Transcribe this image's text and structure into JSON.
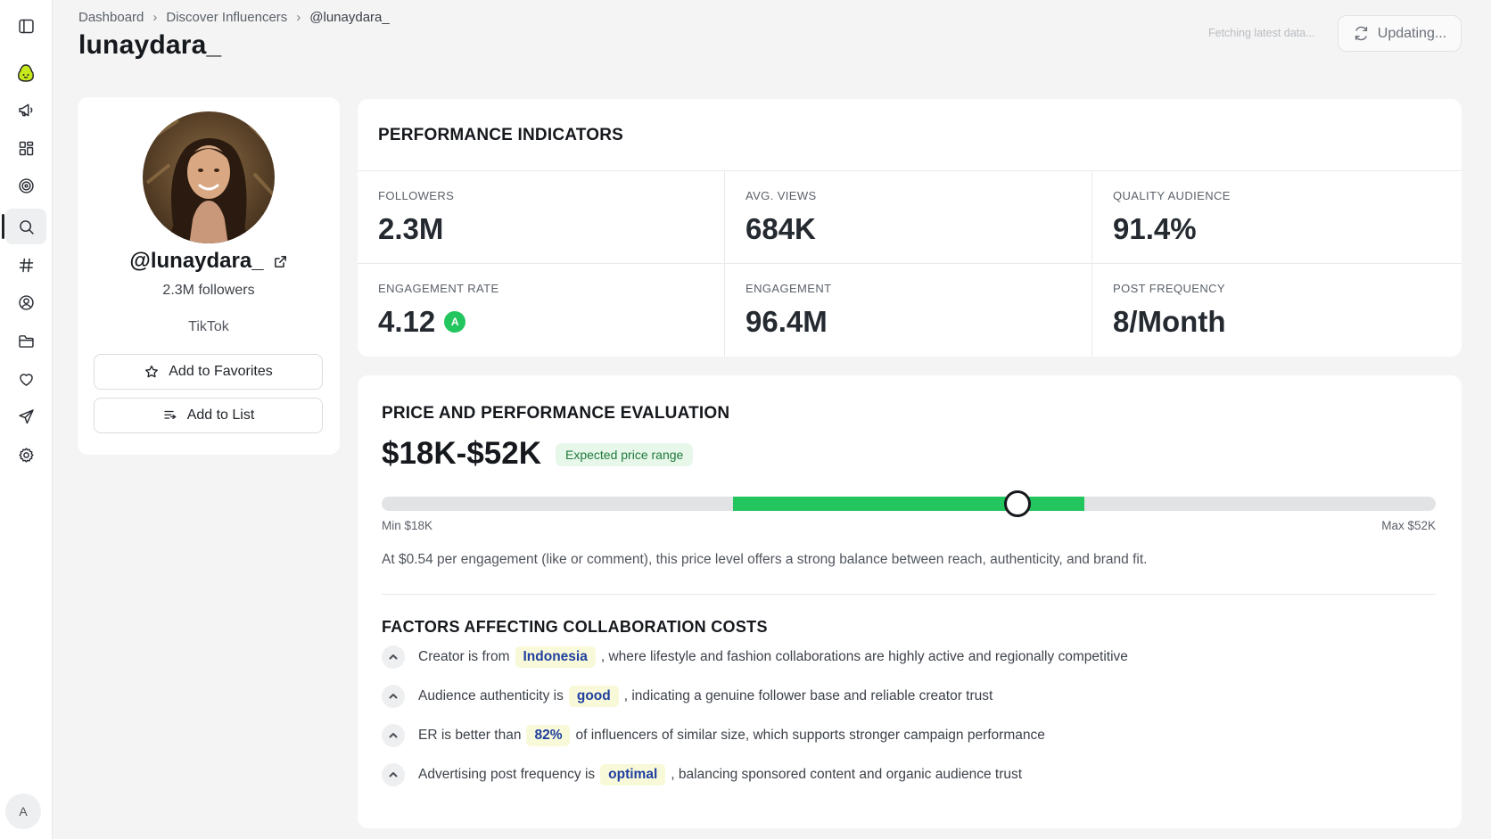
{
  "sidebar": {
    "items": [
      {
        "name": "toggle-sidebar-icon"
      },
      {
        "name": "brand-logo-icon"
      },
      {
        "name": "megaphone-icon"
      },
      {
        "name": "grid-icon"
      },
      {
        "name": "target-icon"
      },
      {
        "name": "search-icon",
        "active": true
      },
      {
        "name": "hashtag-icon"
      },
      {
        "name": "user-circle-icon"
      },
      {
        "name": "folder-icon"
      },
      {
        "name": "heart-icon"
      },
      {
        "name": "send-icon"
      },
      {
        "name": "settings-icon"
      }
    ],
    "avatar_initial": "A"
  },
  "breadcrumb": [
    "Dashboard",
    "Discover Influencers",
    "@lunaydara_"
  ],
  "page_title": "lunaydara_",
  "status": {
    "fetching": "Fetching latest data...",
    "update_label": "Updating..."
  },
  "profile": {
    "handle": "@lunaydara_",
    "followers": "2.3M followers",
    "platform": "TikTok",
    "favorites_label": "Add to Favorites",
    "list_label": "Add to List"
  },
  "performance": {
    "title": "PERFORMANCE INDICATORS",
    "metrics": [
      {
        "label": "FOLLOWERS",
        "value": "2.3M"
      },
      {
        "label": "AVG. VIEWS",
        "value": "684K"
      },
      {
        "label": "QUALITY AUDIENCE",
        "value": "91.4%"
      },
      {
        "label": "ENGAGEMENT RATE",
        "value": "4.12",
        "badge": "A"
      },
      {
        "label": "ENGAGEMENT",
        "value": "96.4M"
      },
      {
        "label": "POST FREQUENCY",
        "value": "8/Month"
      }
    ]
  },
  "price": {
    "title": "PRICE AND PERFORMANCE EVALUATION",
    "range": "$18K-$52K",
    "tag": "Expected price range",
    "min_label": "Min $18K",
    "max_label": "Max $52K",
    "slider": {
      "fill_start": 0.333,
      "fill_end": 0.667,
      "thumb": 0.603
    },
    "description": "At $0.54 per engagement (like or comment), this price level offers a strong balance between reach, authenticity, and brand fit.",
    "factors_title": "FACTORS AFFECTING COLLABORATION COSTS",
    "factors": [
      {
        "before": "Creator is from",
        "highlight": "Indonesia",
        "after": ", where lifestyle and fashion collaborations are highly active and regionally competitive"
      },
      {
        "before": "Audience authenticity is",
        "highlight": "good",
        "after": ", indicating a genuine follower base and reliable creator trust"
      },
      {
        "before": "ER is better than",
        "highlight": "82%",
        "after": "of influencers of similar size, which supports stronger campaign performance"
      },
      {
        "before": "Advertising post frequency is",
        "highlight": "optimal",
        "after": ", balancing sponsored content and organic audience trust"
      }
    ]
  },
  "colors": {
    "accent_green": "#22c55e",
    "highlight_bg": "#f8f9d8",
    "highlight_text": "#1f3fa0"
  }
}
